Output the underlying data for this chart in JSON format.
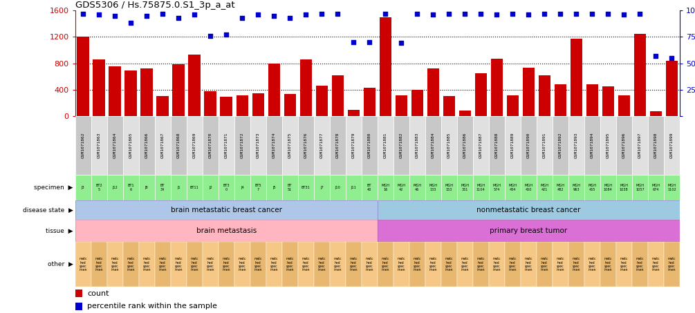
{
  "title": "GDS5306 / Hs.75875.0.S1_3p_a_at",
  "gsm_ids": [
    "GSM1071862",
    "GSM1071863",
    "GSM1071864",
    "GSM1071865",
    "GSM1071866",
    "GSM1071867",
    "GSM1071868",
    "GSM1071869",
    "GSM1071870",
    "GSM1071871",
    "GSM1071872",
    "GSM1071873",
    "GSM1071874",
    "GSM1071875",
    "GSM1071876",
    "GSM1071877",
    "GSM1071878",
    "GSM1071879",
    "GSM1071880",
    "GSM1071881",
    "GSM1071882",
    "GSM1071883",
    "GSM1071884",
    "GSM1071885",
    "GSM1071886",
    "GSM1071887",
    "GSM1071888",
    "GSM1071889",
    "GSM1071890",
    "GSM1071891",
    "GSM1071892",
    "GSM1071893",
    "GSM1071894",
    "GSM1071895",
    "GSM1071896",
    "GSM1071897",
    "GSM1071898",
    "GSM1071899"
  ],
  "bar_values": [
    1200,
    860,
    750,
    690,
    720,
    300,
    780,
    930,
    380,
    290,
    310,
    350,
    790,
    330,
    860,
    460,
    620,
    90,
    430,
    1500,
    310,
    400,
    720,
    300,
    80,
    650,
    870,
    310,
    730,
    620,
    480,
    1170,
    480,
    450,
    310,
    1240,
    70,
    840
  ],
  "percentile_values": [
    97,
    96,
    95,
    88,
    95,
    97,
    93,
    96,
    76,
    77,
    93,
    96,
    95,
    93,
    96,
    97,
    97,
    70,
    70,
    97,
    69,
    97,
    96,
    97,
    97,
    97,
    96,
    97,
    96,
    97,
    97,
    97,
    97,
    97,
    96,
    97,
    57,
    55
  ],
  "specimen_labels": [
    "J3",
    "BT2\n5",
    "J12",
    "BT1\n6",
    "J8",
    "BT\n34",
    "J1",
    "BT11",
    "J2",
    "BT3\n0",
    "J4",
    "BT5\n7",
    "J5",
    "BT\n51",
    "BT31",
    "J7",
    "J10",
    "J11",
    "BT\n40",
    "MGH\n16",
    "MGH\n42",
    "MGH\n46",
    "MGH\n133",
    "MGH\n153",
    "MGH\n351",
    "MGH\n1104",
    "MGH\n574",
    "MGH\n434",
    "MGH\n450",
    "MGH\n421",
    "MGH\n482",
    "MGH\n963",
    "MGH\n455",
    "MGH\n1084",
    "MGH\n1038",
    "MGH\n1057",
    "MGH\n674",
    "MGH\n1102"
  ],
  "n_brain": 19,
  "n_non": 19,
  "disease_brain": "brain metastatic breast cancer",
  "disease_non": "nonmetastatic breast cancer",
  "tissue_brain": "brain metastasis",
  "tissue_primary": "primary breast tumor",
  "bar_color": "#cc0000",
  "dot_color": "#0000cc",
  "background_color": "#ffffff",
  "specimen_color": "#90ee90",
  "disease_color_brain": "#aec6e8",
  "disease_color_non": "#9ecae1",
  "tissue_brain_color": "#ffb6c1",
  "tissue_primary_color": "#da70d6",
  "other_color1": "#f5c887",
  "other_color2": "#e8b870",
  "gsm_bg1": "#c8c8c8",
  "gsm_bg2": "#e0e0e0",
  "ylim_left": [
    0,
    1600
  ],
  "ylim_right": [
    0,
    100
  ],
  "yticks_left": [
    0,
    400,
    800,
    1200,
    1600
  ],
  "yticks_right": [
    0,
    25,
    50,
    75,
    100
  ],
  "hlines": [
    400,
    800,
    1200
  ]
}
